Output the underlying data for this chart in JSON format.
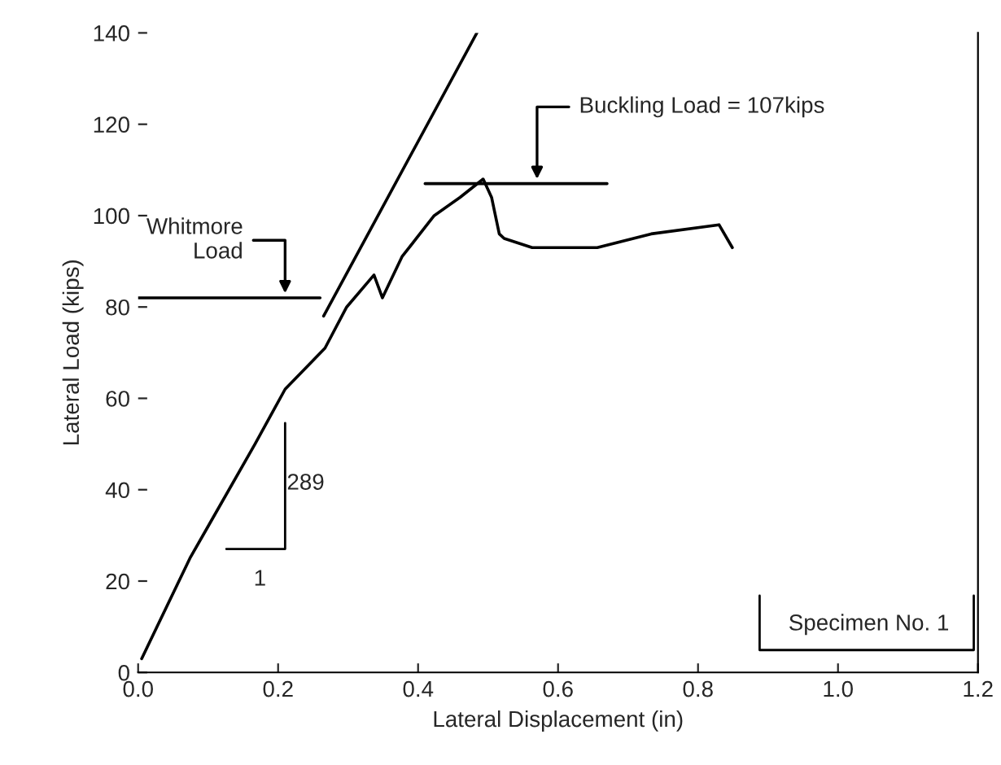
{
  "chart_data": {
    "type": "line",
    "xlabel": "Lateral Displacement (in)",
    "ylabel": "Lateral Load (kips)",
    "xlim": [
      0,
      1.2
    ],
    "ylim": [
      0,
      140
    ],
    "xticks": [
      {
        "value": 0,
        "label": "0.0"
      },
      0.2,
      0.4,
      0.6,
      0.8,
      {
        "value": 1,
        "label": "1.0"
      },
      1.2
    ],
    "yticks": [
      0,
      20,
      40,
      60,
      80,
      100,
      120,
      140
    ],
    "grid": false,
    "legend": false,
    "marker": "none",
    "line_style": "solid",
    "series": [
      {
        "color": "#000000",
        "x": [
          0.265,
          0.484
        ],
        "values": [
          78,
          140
        ]
      },
      {
        "color": "#000000",
        "x": [
          0.005,
          0.074,
          0.167,
          0.21,
          0.267,
          0.298,
          0.337,
          0.349,
          0.377,
          0.423,
          0.46,
          0.493,
          0.505,
          0.516,
          0.523,
          0.563,
          0.656,
          0.733,
          0.83,
          0.849
        ],
        "values": [
          3,
          25,
          50,
          62,
          71,
          80,
          87,
          82,
          91,
          100,
          104,
          108,
          104,
          96,
          95,
          93,
          93,
          96,
          98,
          93
        ]
      },
      {
        "color": "#000000",
        "x": [
          0,
          0.26
        ],
        "values": [
          82,
          82
        ]
      },
      {
        "color": "#000000",
        "x": [
          0.41,
          0.67
        ],
        "values": [
          107,
          107
        ]
      }
    ],
    "annotations": [
      {
        "text": "Whitmore\nLoad",
        "x": 0.21,
        "y": 82
      },
      {
        "text": "Buckling Load = 107kips",
        "x": 0.57,
        "y": 107
      },
      "289",
      "1",
      "Specimen No. 1"
    ]
  }
}
